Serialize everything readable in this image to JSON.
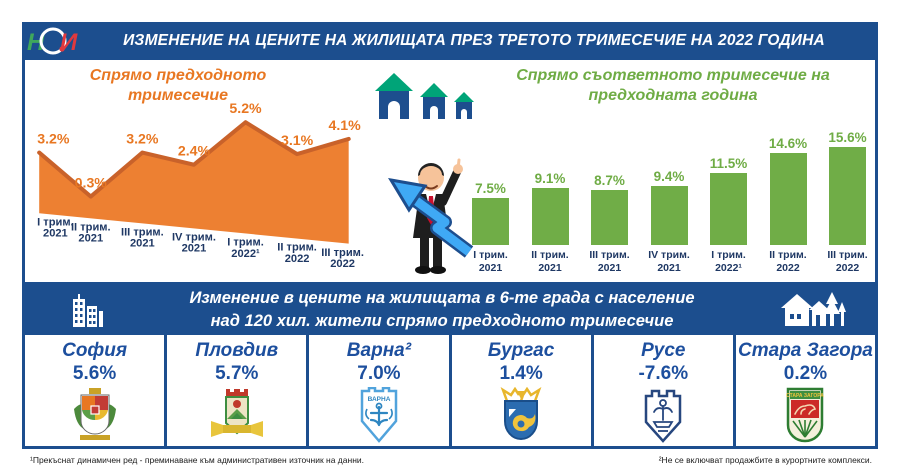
{
  "header": {
    "logo_text": "НСИ",
    "title": "ИЗМЕНЕНИЕ НА ЦЕНИТЕ НА ЖИЛИЩАТА ПРЕЗ ТРЕТОТО ТРИМЕСЕЧИЕ НА 2022 ГОДИНА"
  },
  "chart_data": [
    {
      "type": "area",
      "title": "Спрямо предходното тримесечие",
      "categories": [
        {
          "q": "I трим.",
          "year": "2021"
        },
        {
          "q": "II трим.",
          "year": "2021"
        },
        {
          "q": "III трим.",
          "year": "2021"
        },
        {
          "q": "IV трим.",
          "year": "2021"
        },
        {
          "q": "I трим.",
          "year": "2022¹"
        },
        {
          "q": "II трим.",
          "year": "2022"
        },
        {
          "q": "III трим.",
          "year": "2022"
        }
      ],
      "values": [
        3.2,
        0.3,
        3.2,
        2.4,
        5.2,
        3.1,
        4.1
      ],
      "unit": "%",
      "ylim": [
        0,
        5.5
      ],
      "fill_color": "#ED8032",
      "ridge_color": "#C9622A",
      "label_color": "#E87722",
      "tick_color": "#1F3864"
    },
    {
      "type": "bar",
      "title": "Спрямо съответното тримесечие на предходната година",
      "categories": [
        {
          "q": "I трим.",
          "year": "2021"
        },
        {
          "q": "II трим.",
          "year": "2021"
        },
        {
          "q": "III трим.",
          "year": "2021"
        },
        {
          "q": "IV трим.",
          "year": "2021"
        },
        {
          "q": "I трим.",
          "year": "2022¹"
        },
        {
          "q": "II трим.",
          "year": "2022"
        },
        {
          "q": "III трим.",
          "year": "2022"
        }
      ],
      "values": [
        7.5,
        9.1,
        8.7,
        9.4,
        11.5,
        14.6,
        15.6
      ],
      "unit": "%",
      "ylim": [
        0,
        16
      ],
      "color": "#70AD47",
      "tick_color": "#1F3864"
    }
  ],
  "band": {
    "line1": "Изменение в цените на жилищата в 6-те града с население",
    "line2": "над 120 хил. жители спрямо предходното тримесечие"
  },
  "cities": [
    {
      "name": "София",
      "value": "5.6%"
    },
    {
      "name": "Пловдив",
      "value": "5.7%"
    },
    {
      "name": "Варна²",
      "value": "7.0%"
    },
    {
      "name": "Бургас",
      "value": "1.4%"
    },
    {
      "name": "Русе",
      "value": "-7.6%"
    },
    {
      "name": "Стара Загора",
      "value": "0.2%"
    }
  ],
  "footnotes": {
    "left": "¹Прекъснат динамичен ред - преминаване към административен източник на данни.",
    "right": "²Не се включват продажбите в курортните комплекси."
  },
  "colors": {
    "brand_blue": "#1C4E8E",
    "orange": "#ED8032",
    "green": "#70AD47",
    "city_text_blue": "#1D4F9E"
  }
}
